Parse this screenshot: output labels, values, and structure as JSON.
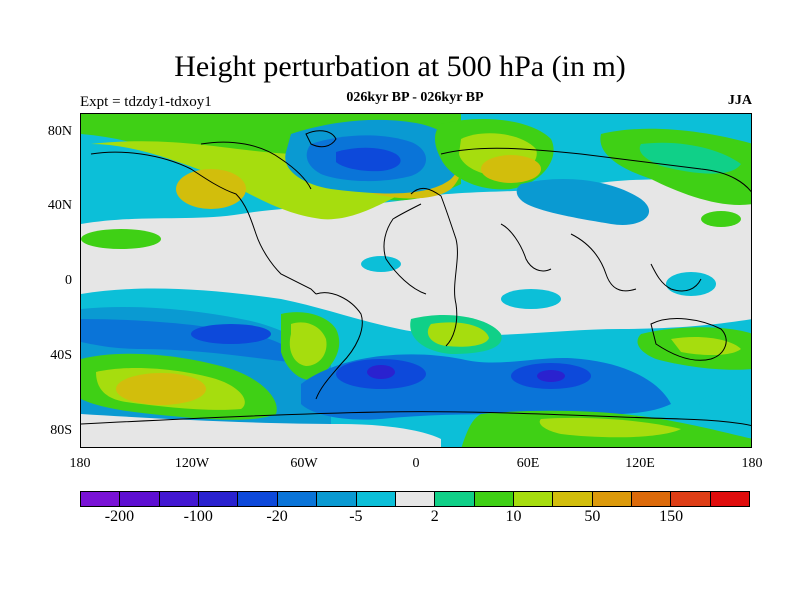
{
  "title": "Height perturbation at 500 hPa (in m)",
  "experiment": "Expt = tdzdy1-tdxoy1",
  "period": "026kyr BP - 026kyr BP",
  "season": "JJA",
  "lat_ticks": [
    "80N",
    "40N",
    "0",
    "40S",
    "80S"
  ],
  "lon_ticks": [
    "180",
    "120W",
    "60W",
    "0",
    "60E",
    "120E",
    "180"
  ],
  "colorbar": {
    "colors": [
      "#7a13d6",
      "#5e0fd2",
      "#4318d2",
      "#2a22cf",
      "#0d49da",
      "#0a74d8",
      "#0a9ad2",
      "#0cbfd8",
      "#e6e6e6",
      "#10d088",
      "#3fd015",
      "#a6dd0e",
      "#d2be0c",
      "#dc9a0b",
      "#dc6a0a",
      "#de3e16",
      "#e00d0d"
    ],
    "labels": [
      "-200",
      "-100",
      "-20",
      "-5",
      "2",
      "10",
      "50",
      "150"
    ]
  },
  "chart_data": {
    "type": "heatmap",
    "title": "Height perturbation at 500 hPa (in m)",
    "subtitle": "026kyr BP - 026kyr BP",
    "variable": "500 hPa height perturbation",
    "units": "m",
    "season": "JJA",
    "x_ticks": [
      "180",
      "120W",
      "60W",
      "0",
      "60E",
      "120E",
      "180"
    ],
    "y_ticks": [
      "80N",
      "40N",
      "0",
      "40S",
      "80S"
    ],
    "contour_labels": [
      "-200",
      "-100",
      "-20",
      "-5",
      "2",
      "10",
      "50",
      "150"
    ]
  }
}
